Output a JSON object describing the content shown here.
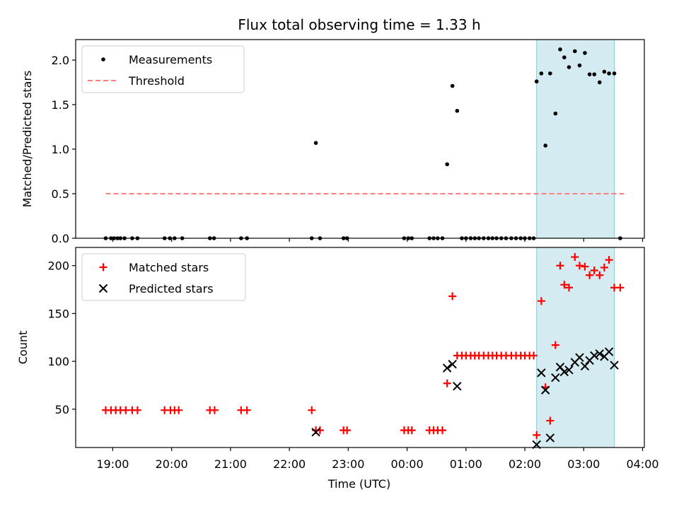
{
  "title": "Flux total observing time = 1.33 h",
  "xlabel": "Time (UTC)",
  "x_tick_labels": [
    "19:00",
    "20:00",
    "21:00",
    "22:00",
    "23:00",
    "00:00",
    "01:00",
    "02:00",
    "03:00",
    "04:00"
  ],
  "colors": {
    "measurements": "#000000",
    "threshold": "#ff7f7f",
    "matched": "#ff0000",
    "predicted": "#000000",
    "highlight": "#a8d8e4"
  },
  "chart_data": [
    {
      "type": "scatter",
      "title": "Flux total observing time = 1.33 h",
      "xlabel": "",
      "ylabel": "Matched/Predicted stars",
      "x_unit": "hours after 19:00 UTC",
      "xlim": [
        -0.63,
        9.03
      ],
      "ylim": [
        0,
        2.23
      ],
      "y_ticks": [
        0.0,
        0.5,
        1.0,
        1.5,
        2.0
      ],
      "y_tick_labels": [
        "0.0",
        "0.5",
        "1.0",
        "1.5",
        "2.0"
      ],
      "legend_position": "top-left",
      "legend": [
        "Measurements",
        "Threshold"
      ],
      "highlight_span": [
        7.2,
        8.52
      ],
      "threshold": {
        "name": "Threshold",
        "value": 0.5,
        "x_range": [
          -0.12,
          8.73
        ]
      },
      "series": [
        {
          "name": "Measurements",
          "points": [
            [
              -0.12,
              0
            ],
            [
              -0.03,
              0
            ],
            [
              0.02,
              0
            ],
            [
              0.08,
              0
            ],
            [
              0.13,
              0
            ],
            [
              0.2,
              0
            ],
            [
              0.33,
              0
            ],
            [
              0.42,
              0
            ],
            [
              0.88,
              0
            ],
            [
              0.97,
              0
            ],
            [
              1.05,
              0
            ],
            [
              1.18,
              0
            ],
            [
              1.65,
              0
            ],
            [
              1.72,
              0
            ],
            [
              2.18,
              0
            ],
            [
              2.28,
              0
            ],
            [
              3.38,
              0
            ],
            [
              3.45,
              1.07
            ],
            [
              3.52,
              0
            ],
            [
              3.92,
              0
            ],
            [
              3.98,
              0
            ],
            [
              4.95,
              0
            ],
            [
              5.02,
              0
            ],
            [
              5.08,
              0
            ],
            [
              5.38,
              0
            ],
            [
              5.45,
              0
            ],
            [
              5.52,
              0
            ],
            [
              5.6,
              0
            ],
            [
              5.68,
              0.83
            ],
            [
              5.77,
              1.71
            ],
            [
              5.85,
              1.43
            ],
            [
              5.93,
              0
            ],
            [
              6.0,
              0
            ],
            [
              6.08,
              0
            ],
            [
              6.15,
              0
            ],
            [
              6.22,
              0
            ],
            [
              6.3,
              0
            ],
            [
              6.38,
              0
            ],
            [
              6.45,
              0
            ],
            [
              6.52,
              0
            ],
            [
              6.6,
              0
            ],
            [
              6.68,
              0
            ],
            [
              6.77,
              0
            ],
            [
              6.85,
              0
            ],
            [
              6.93,
              0
            ],
            [
              7.0,
              0
            ],
            [
              7.08,
              0
            ],
            [
              7.15,
              0
            ],
            [
              7.2,
              1.76
            ],
            [
              7.28,
              1.85
            ],
            [
              7.35,
              1.04
            ],
            [
              7.43,
              1.85
            ],
            [
              7.52,
              1.4
            ],
            [
              7.6,
              2.12
            ],
            [
              7.67,
              2.03
            ],
            [
              7.75,
              1.92
            ],
            [
              7.85,
              2.1
            ],
            [
              7.93,
              1.94
            ],
            [
              8.02,
              2.08
            ],
            [
              8.1,
              1.84
            ],
            [
              8.18,
              1.84
            ],
            [
              8.27,
              1.75
            ],
            [
              8.35,
              1.87
            ],
            [
              8.43,
              1.85
            ],
            [
              8.52,
              1.85
            ],
            [
              8.62,
              0
            ]
          ]
        }
      ]
    },
    {
      "type": "scatter",
      "title": "",
      "xlabel": "Time (UTC)",
      "ylabel": "Count",
      "x_unit": "hours after 19:00 UTC",
      "xlim": [
        -0.63,
        9.03
      ],
      "ylim": [
        10,
        219
      ],
      "y_ticks": [
        50,
        100,
        150,
        200
      ],
      "y_tick_labels": [
        "50",
        "100",
        "150",
        "200"
      ],
      "legend_position": "top-left",
      "legend": [
        "Matched stars",
        "Predicted stars"
      ],
      "highlight_span": [
        7.2,
        8.52
      ],
      "series": [
        {
          "name": "Matched stars",
          "marker": "+",
          "points": [
            [
              -0.12,
              49
            ],
            [
              -0.03,
              49
            ],
            [
              0.05,
              49
            ],
            [
              0.13,
              49
            ],
            [
              0.22,
              49
            ],
            [
              0.33,
              49
            ],
            [
              0.42,
              49
            ],
            [
              0.88,
              49
            ],
            [
              0.98,
              49
            ],
            [
              1.05,
              49
            ],
            [
              1.12,
              49
            ],
            [
              1.65,
              49
            ],
            [
              1.73,
              49
            ],
            [
              2.18,
              49
            ],
            [
              2.28,
              49
            ],
            [
              3.38,
              49
            ],
            [
              3.45,
              28
            ],
            [
              3.52,
              28
            ],
            [
              3.92,
              28
            ],
            [
              3.98,
              28
            ],
            [
              4.95,
              28
            ],
            [
              5.02,
              28
            ],
            [
              5.08,
              28
            ],
            [
              5.38,
              28
            ],
            [
              5.45,
              28
            ],
            [
              5.52,
              28
            ],
            [
              5.6,
              28
            ],
            [
              5.68,
              77
            ],
            [
              5.77,
              168
            ],
            [
              5.85,
              106
            ],
            [
              5.93,
              106
            ],
            [
              6.0,
              106
            ],
            [
              6.08,
              106
            ],
            [
              6.15,
              106
            ],
            [
              6.22,
              106
            ],
            [
              6.3,
              106
            ],
            [
              6.38,
              106
            ],
            [
              6.45,
              106
            ],
            [
              6.52,
              106
            ],
            [
              6.6,
              106
            ],
            [
              6.68,
              106
            ],
            [
              6.77,
              106
            ],
            [
              6.85,
              106
            ],
            [
              6.93,
              106
            ],
            [
              7.0,
              106
            ],
            [
              7.08,
              106
            ],
            [
              7.15,
              106
            ],
            [
              7.2,
              23
            ],
            [
              7.28,
              163
            ],
            [
              7.35,
              73
            ],
            [
              7.43,
              38
            ],
            [
              7.52,
              117
            ],
            [
              7.6,
              200
            ],
            [
              7.67,
              180
            ],
            [
              7.75,
              177
            ],
            [
              7.85,
              209
            ],
            [
              7.93,
              200
            ],
            [
              8.02,
              199
            ],
            [
              8.1,
              190
            ],
            [
              8.18,
              195
            ],
            [
              8.27,
              190
            ],
            [
              8.35,
              198
            ],
            [
              8.43,
              206
            ],
            [
              8.52,
              177
            ],
            [
              8.62,
              177
            ]
          ]
        },
        {
          "name": "Predicted stars",
          "marker": "x",
          "points": [
            [
              3.45,
              26
            ],
            [
              5.68,
              93
            ],
            [
              5.77,
              97
            ],
            [
              5.85,
              74
            ],
            [
              7.2,
              13
            ],
            [
              7.28,
              88
            ],
            [
              7.35,
              70
            ],
            [
              7.43,
              20
            ],
            [
              7.52,
              83
            ],
            [
              7.6,
              94
            ],
            [
              7.67,
              89
            ],
            [
              7.75,
              91
            ],
            [
              7.85,
              99
            ],
            [
              7.93,
              104
            ],
            [
              8.02,
              95
            ],
            [
              8.1,
              101
            ],
            [
              8.18,
              106
            ],
            [
              8.27,
              108
            ],
            [
              8.35,
              105
            ],
            [
              8.43,
              110
            ],
            [
              8.52,
              96
            ]
          ]
        }
      ]
    }
  ]
}
